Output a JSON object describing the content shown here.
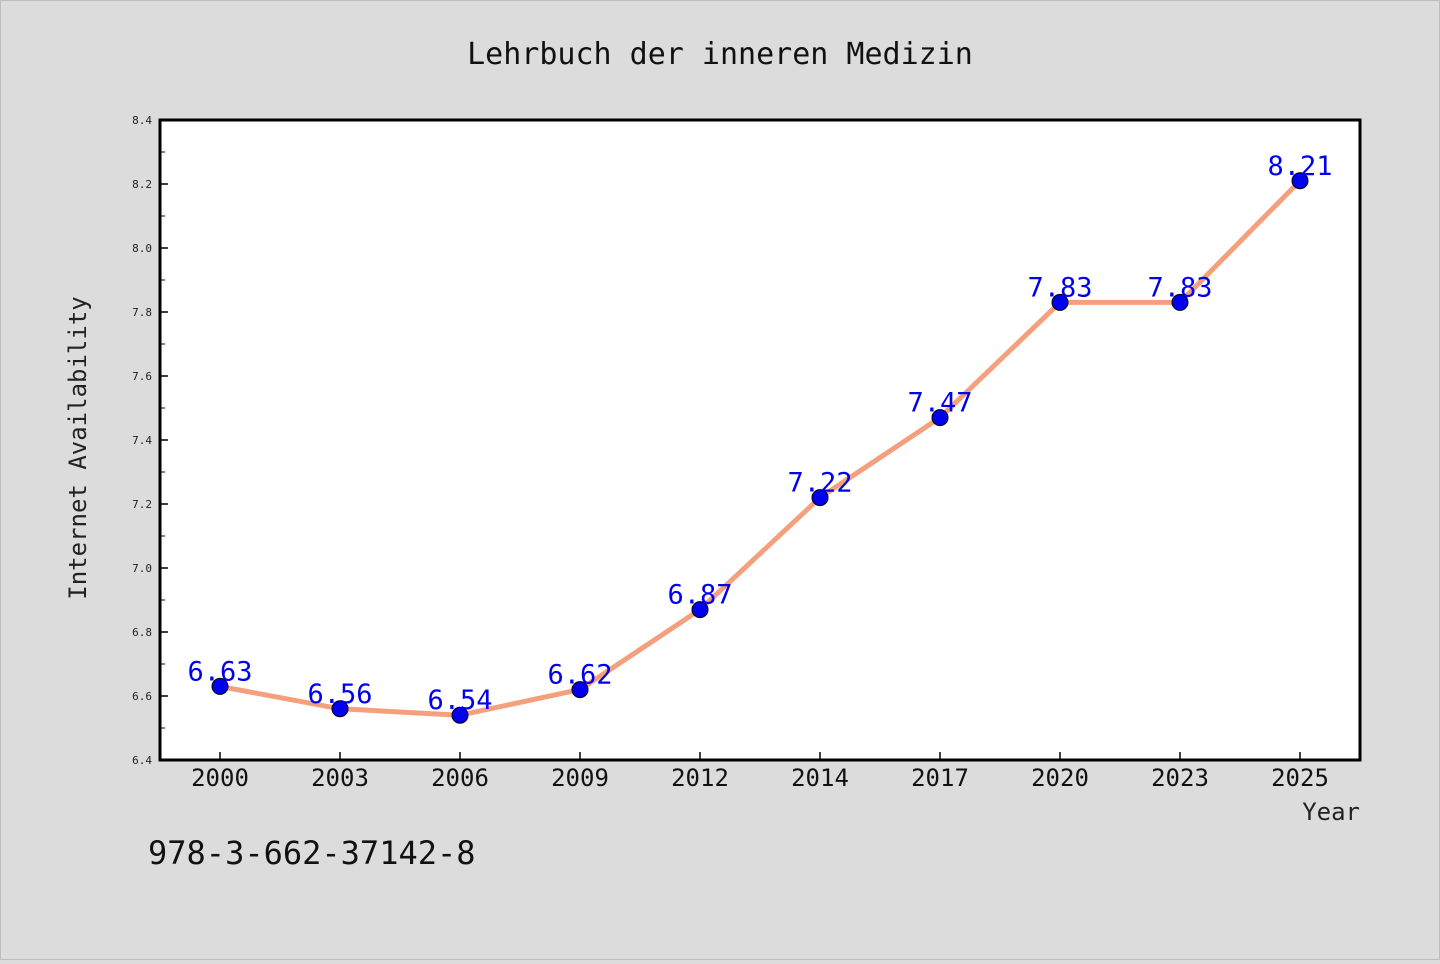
{
  "chart_data": {
    "type": "line",
    "title": "Lehrbuch der inneren Medizin",
    "xlabel": "Year",
    "ylabel": "Internet Availability",
    "categories": [
      "2000",
      "2003",
      "2006",
      "2009",
      "2012",
      "2014",
      "2017",
      "2020",
      "2023",
      "2025"
    ],
    "series": [
      {
        "values": [
          6.63,
          6.56,
          6.54,
          6.62,
          6.87,
          7.22,
          7.47,
          7.83,
          7.83,
          8.21
        ],
        "labels": [
          "6.63",
          "6.56",
          "6.54",
          "6.62",
          "6.87",
          "7.22",
          "7.47",
          "7.83",
          "7.83",
          "8.21"
        ]
      }
    ],
    "ylim": [
      6.4,
      8.4
    ],
    "yticks": [
      "6.4",
      "6.6",
      "6.8",
      "7.0",
      "7.2",
      "7.4",
      "7.6",
      "7.8",
      "8.0",
      "8.2",
      "8.4"
    ],
    "grid": false,
    "line_color": "#f4a07c",
    "marker_color": "#0000ee",
    "label_color": "#0000ee",
    "footer_text": "978-3-662-37142-8"
  }
}
